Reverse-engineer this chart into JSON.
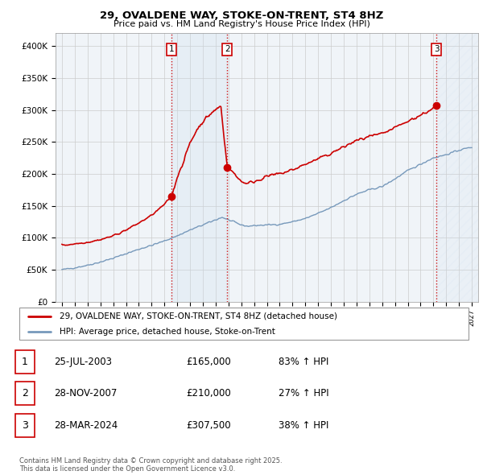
{
  "title": "29, OVALDENE WAY, STOKE-ON-TRENT, ST4 8HZ",
  "subtitle": "Price paid vs. HM Land Registry's House Price Index (HPI)",
  "xlim": [
    1994.5,
    2027.5
  ],
  "ylim": [
    0,
    420000
  ],
  "yticks": [
    0,
    50000,
    100000,
    150000,
    200000,
    250000,
    300000,
    350000,
    400000
  ],
  "ytick_labels": [
    "£0",
    "£50K",
    "£100K",
    "£150K",
    "£200K",
    "£250K",
    "£300K",
    "£350K",
    "£400K"
  ],
  "grid_color": "#cccccc",
  "background_color": "#ffffff",
  "plot_bg_color": "#f0f4f8",
  "red_line_color": "#cc0000",
  "blue_line_color": "#7799bb",
  "shade_color": "#ccddf0",
  "purchase_dates": [
    2003.56,
    2007.91,
    2024.24
  ],
  "purchase_prices": [
    165000,
    210000,
    307500
  ],
  "purchase_labels": [
    "1",
    "2",
    "3"
  ],
  "vline_color": "#cc0000",
  "legend_line1": "29, OVALDENE WAY, STOKE-ON-TRENT, ST4 8HZ (detached house)",
  "legend_line2": "HPI: Average price, detached house, Stoke-on-Trent",
  "table_entries": [
    {
      "num": "1",
      "date": "25-JUL-2003",
      "price": "£165,000",
      "hpi": "83% ↑ HPI"
    },
    {
      "num": "2",
      "date": "28-NOV-2007",
      "price": "£210,000",
      "hpi": "27% ↑ HPI"
    },
    {
      "num": "3",
      "date": "28-MAR-2024",
      "price": "£307,500",
      "hpi": "38% ↑ HPI"
    }
  ],
  "footnote": "Contains HM Land Registry data © Crown copyright and database right 2025.\nThis data is licensed under the Open Government Licence v3.0."
}
